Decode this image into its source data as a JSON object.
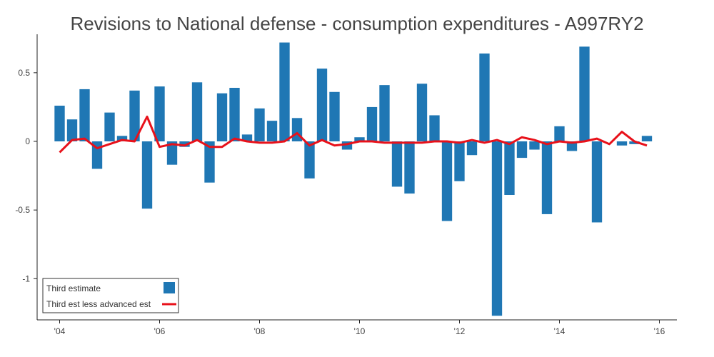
{
  "chart_data": {
    "type": "bar",
    "title": "Revisions to National defense - consumption expenditures - A997RY2",
    "xlabel": "",
    "ylabel": "",
    "ylim": [
      -1.3,
      0.78
    ],
    "xlim": [
      2003.55,
      2016.35
    ],
    "x_ticks": [
      {
        "value": 2004,
        "label": "'04"
      },
      {
        "value": 2006,
        "label": "'06"
      },
      {
        "value": 2008,
        "label": "'08"
      },
      {
        "value": 2010,
        "label": "'10"
      },
      {
        "value": 2012,
        "label": "'12"
      },
      {
        "value": 2014,
        "label": "'14"
      },
      {
        "value": 2016,
        "label": "'16"
      }
    ],
    "y_ticks": [
      {
        "value": 0.5,
        "label": "0.5"
      },
      {
        "value": 0,
        "label": "0"
      },
      {
        "value": -0.5,
        "label": "-0.5"
      },
      {
        "value": -1,
        "label": "-1"
      }
    ],
    "grid": false,
    "legend_position": "bottom-left",
    "x": [
      2004.0,
      2004.25,
      2004.5,
      2004.75,
      2005.0,
      2005.25,
      2005.5,
      2005.75,
      2006.0,
      2006.25,
      2006.5,
      2006.75,
      2007.0,
      2007.25,
      2007.5,
      2007.75,
      2008.0,
      2008.25,
      2008.5,
      2008.75,
      2009.0,
      2009.25,
      2009.5,
      2009.75,
      2010.0,
      2010.25,
      2010.5,
      2010.75,
      2011.0,
      2011.25,
      2011.5,
      2011.75,
      2012.0,
      2012.25,
      2012.5,
      2012.75,
      2013.0,
      2013.25,
      2013.5,
      2013.75,
      2014.0,
      2014.25,
      2014.5,
      2014.75,
      2015.0,
      2015.25,
      2015.5,
      2015.75
    ],
    "series": [
      {
        "name": "Third estimate",
        "type": "bar",
        "color": "#1f77b4",
        "values": [
          0.26,
          0.16,
          0.38,
          -0.2,
          0.21,
          0.04,
          0.37,
          -0.49,
          0.4,
          -0.17,
          -0.04,
          0.43,
          -0.3,
          0.35,
          0.39,
          0.05,
          0.24,
          0.15,
          0.72,
          0.17,
          -0.27,
          0.53,
          0.36,
          -0.06,
          0.03,
          0.25,
          0.41,
          -0.33,
          -0.38,
          0.42,
          0.19,
          -0.58,
          -0.29,
          -0.1,
          0.64,
          -1.27,
          -0.39,
          -0.12,
          -0.06,
          -0.53,
          0.11,
          -0.07,
          0.69,
          -0.59,
          0.0,
          -0.03,
          -0.02,
          0.04
        ]
      },
      {
        "name": "Third est less advanced est",
        "type": "line",
        "color": "#e8111a",
        "values": [
          -0.08,
          0.01,
          0.02,
          -0.05,
          -0.02,
          0.01,
          0.0,
          0.18,
          -0.04,
          -0.02,
          -0.03,
          0.01,
          -0.04,
          -0.04,
          0.02,
          0.0,
          -0.01,
          -0.01,
          0.0,
          0.06,
          -0.03,
          0.01,
          -0.03,
          -0.02,
          0.0,
          0.0,
          -0.01,
          -0.01,
          -0.01,
          -0.01,
          0.0,
          0.0,
          -0.01,
          0.01,
          -0.01,
          0.01,
          -0.02,
          0.03,
          0.01,
          -0.02,
          0.0,
          -0.01,
          0.0,
          0.02,
          -0.02,
          0.07,
          0.0,
          -0.03
        ]
      }
    ]
  }
}
